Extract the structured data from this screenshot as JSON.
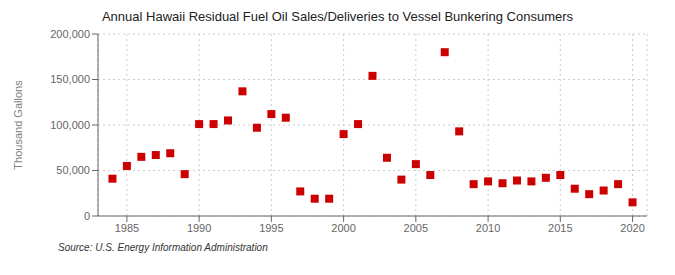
{
  "chart_data": {
    "type": "scatter",
    "title": "Annual Hawaii Residual Fuel Oil Sales/Deliveries to Vessel Bunkering Consumers",
    "y_label": "Thousand Gallons",
    "annotations": [
      "Source: U.S. Energy Information Administration"
    ],
    "x": [
      1984,
      1985,
      1986,
      1987,
      1988,
      1989,
      1990,
      1991,
      1992,
      1993,
      1994,
      1995,
      1996,
      1997,
      1998,
      1999,
      2000,
      2001,
      2002,
      2003,
      2004,
      2005,
      2006,
      2007,
      2008,
      2009,
      2010,
      2011,
      2012,
      2013,
      2014,
      2015,
      2016,
      2017,
      2018,
      2019,
      2020
    ],
    "values": [
      41000,
      55000,
      65000,
      67000,
      69000,
      46000,
      101000,
      101000,
      105000,
      137000,
      97000,
      112000,
      108000,
      27000,
      19000,
      19000,
      90000,
      101000,
      154000,
      64000,
      40000,
      57000,
      45000,
      180000,
      93000,
      35000,
      38000,
      36000,
      39000,
      38000,
      42000,
      45000,
      30000,
      24000,
      28000,
      35000,
      15000
    ],
    "color": "#cc0000",
    "marker": "square",
    "xlim": [
      1983,
      2021
    ],
    "ylim": [
      0,
      200000
    ],
    "xticks": [
      1985,
      1990,
      1995,
      2000,
      2005,
      2010,
      2015,
      2020
    ],
    "yticks": [
      0,
      {
        "value": 50000,
        "label": "50,000"
      },
      {
        "value": 100000,
        "label": "100,000"
      },
      {
        "value": 150000,
        "label": "150,000"
      },
      {
        "value": 200000,
        "label": "200,000"
      }
    ],
    "grid": true
  }
}
